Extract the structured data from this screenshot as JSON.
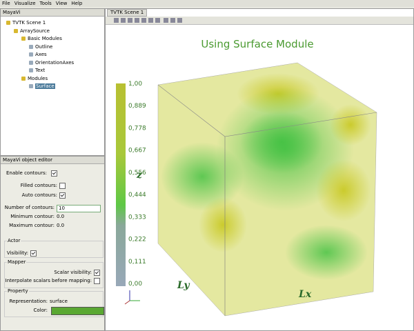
{
  "menu": [
    "File",
    "Visualize",
    "Tools",
    "View",
    "Help"
  ],
  "tree_panel": {
    "title": "MayaVi",
    "nodes": [
      {
        "label": "TVTK Scene 1",
        "level": 0
      },
      {
        "label": "ArraySource",
        "level": 1
      },
      {
        "label": "Basic Modules",
        "level": 2
      },
      {
        "label": "Outline",
        "level": 3
      },
      {
        "label": "Axes",
        "level": 3
      },
      {
        "label": "OrientationAxes",
        "level": 3
      },
      {
        "label": "Text",
        "level": 3
      },
      {
        "label": "Modules",
        "level": 2
      },
      {
        "label": "Surface",
        "level": 3,
        "selected": true
      }
    ]
  },
  "editor": {
    "title": "MayaVi object editor",
    "fields": [
      {
        "label": "Enable contours:",
        "checked": true
      },
      {
        "label": "Filled contours:",
        "checked": false
      },
      {
        "label": "Auto contours:",
        "checked": true
      },
      {
        "label": "Number of contours:",
        "value": "10"
      },
      {
        "label": "Minimum contour:",
        "value": "0.0"
      },
      {
        "label": "Maximum contour:",
        "value": "0.0"
      }
    ],
    "groups": [
      {
        "title": "Actor",
        "fields": [
          {
            "label": "Visibility:",
            "checked": true
          }
        ]
      },
      {
        "title": "Mapper",
        "fields": [
          {
            "label": "Scalar visibility:",
            "checked": true
          },
          {
            "label": "Interpolate scalars before mapping:",
            "checked": false
          }
        ]
      },
      {
        "title": "Property",
        "fields": [
          {
            "label": "Representation:",
            "value": "surface"
          },
          {
            "label": "Color:",
            "color": "#5aa832"
          }
        ]
      }
    ]
  },
  "scene": {
    "tab": "TVTK Scene 1",
    "title": "Using Surface Module",
    "colorbar_labels": [
      "1,00",
      "0,889",
      "0,778",
      "0,667",
      "0,556",
      "0,444",
      "0,333",
      "0,222",
      "0,111",
      "0,00"
    ],
    "axis_labels": {
      "x": "Lx",
      "y": "Ly",
      "z": "z"
    }
  }
}
